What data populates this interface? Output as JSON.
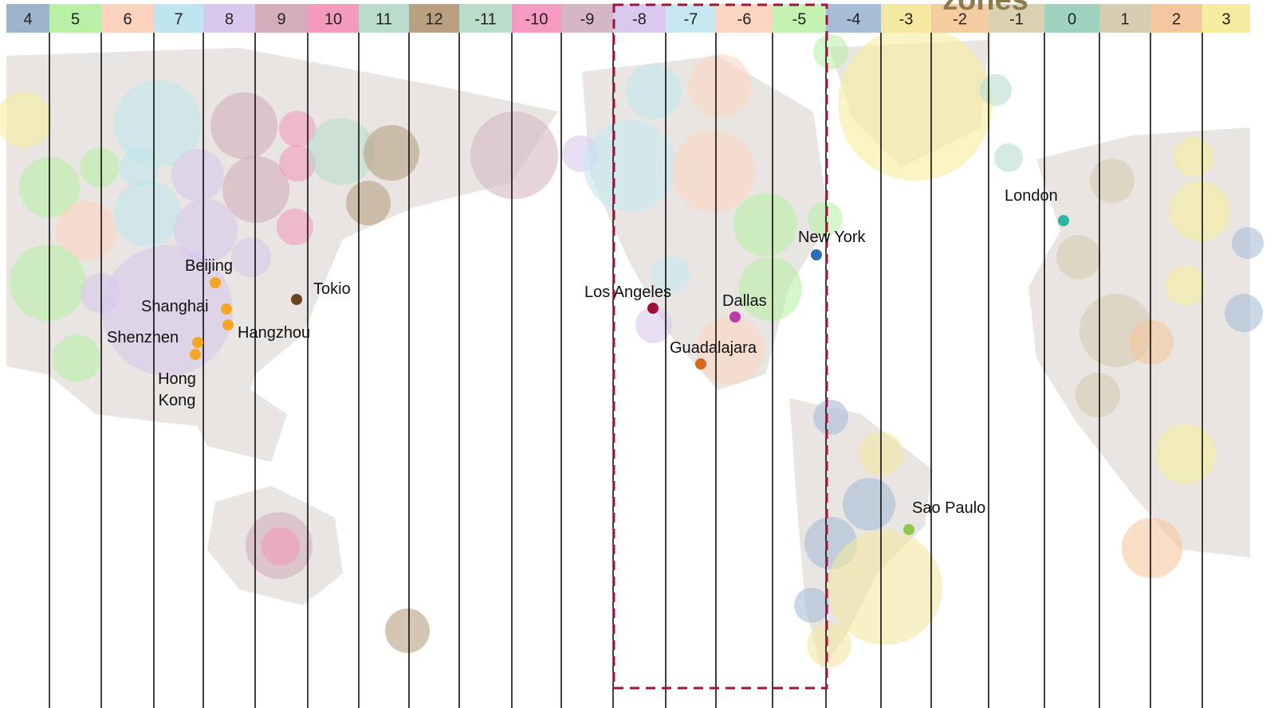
{
  "title": "zones",
  "zones": [
    {
      "label": "4",
      "color": "#9db5cc"
    },
    {
      "label": "5",
      "color": "#b9f0a8"
    },
    {
      "label": "6",
      "color": "#fbd3bf"
    },
    {
      "label": "7",
      "color": "#bfe6ee"
    },
    {
      "label": "8",
      "color": "#d7c8ec"
    },
    {
      "label": "9",
      "color": "#d3adbc"
    },
    {
      "label": "10",
      "color": "#f29bbd"
    },
    {
      "label": "11",
      "color": "#b9dccd"
    },
    {
      "label": "12",
      "color": "#b8a080"
    },
    {
      "label": "-11",
      "color": "#bcdcca"
    },
    {
      "label": "-10",
      "color": "#f59ac0"
    },
    {
      "label": "-9",
      "color": "#d5b6c4"
    },
    {
      "label": "-8",
      "color": "#d9c9ee"
    },
    {
      "label": "-7",
      "color": "#c7e8f1"
    },
    {
      "label": "-6",
      "color": "#fcd6c2"
    },
    {
      "label": "-5",
      "color": "#c4f2b3"
    },
    {
      "label": "-4",
      "color": "#a7bcd5"
    },
    {
      "label": "-3",
      "color": "#f4e8a2"
    },
    {
      "label": "-2",
      "color": "#f5cba0"
    },
    {
      "label": "-1",
      "color": "#d9d1b0"
    },
    {
      "label": "0",
      "color": "#9fd3c0"
    },
    {
      "label": "1",
      "color": "#d6ccb0"
    },
    {
      "label": "2",
      "color": "#f5c79f"
    },
    {
      "label": "3",
      "color": "#f6ec9f"
    }
  ],
  "cities": [
    {
      "name": "Beijing",
      "color": "#f5a623"
    },
    {
      "name": "Shanghai",
      "color": "#f5a623"
    },
    {
      "name": "Hangzhou",
      "color": "#f5a623"
    },
    {
      "name": "Shenzhen",
      "color": "#f5a623"
    },
    {
      "name": "Hong Kong",
      "color": "#f5a623"
    },
    {
      "name": "Tokio",
      "color": "#6b4423"
    },
    {
      "name": "Los Angeles",
      "color": "#a0103a"
    },
    {
      "name": "Dallas",
      "color": "#c03aa8"
    },
    {
      "name": "Guadalajara",
      "color": "#d2691e"
    },
    {
      "name": "New York",
      "color": "#2d6db5"
    },
    {
      "name": "London",
      "color": "#2ab5a5"
    },
    {
      "name": "Sao Paulo",
      "color": "#8cc84b"
    }
  ]
}
